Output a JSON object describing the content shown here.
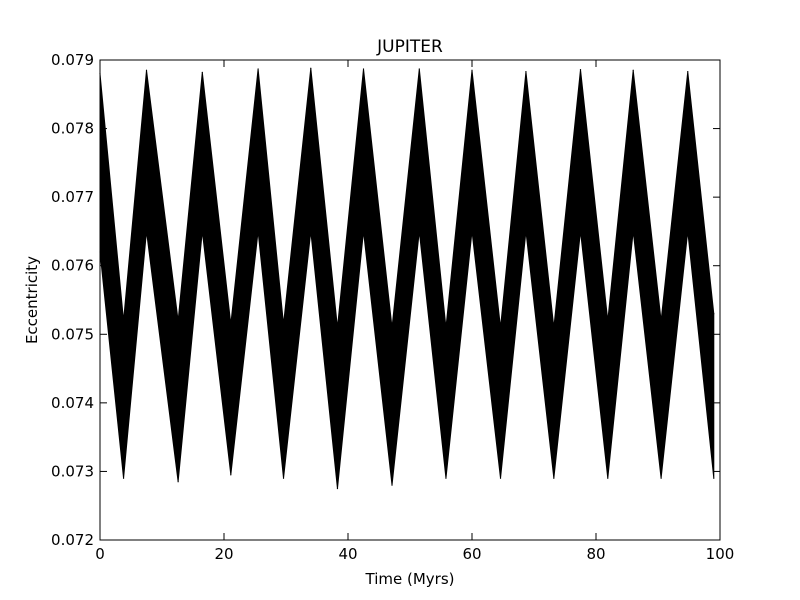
{
  "chart_data": {
    "type": "area",
    "title": "JUPITER",
    "xlabel": "Time (Myrs)",
    "ylabel": "Eccentricity",
    "xlim": [
      0,
      100
    ],
    "ylim": [
      0.072,
      0.079
    ],
    "xticks": [
      0,
      20,
      40,
      60,
      80,
      100
    ],
    "xtick_labels": [
      "0",
      "20",
      "40",
      "60",
      "80",
      "100"
    ],
    "yticks": [
      0.072,
      0.073,
      0.074,
      0.075,
      0.076,
      0.077,
      0.078,
      0.079
    ],
    "ytick_labels": [
      "0.072",
      "0.073",
      "0.074",
      "0.075",
      "0.076",
      "0.077",
      "0.078",
      "0.079"
    ],
    "grid": false,
    "fill_color": "#000000",
    "series": [
      {
        "x": [
          0,
          3.8,
          7.5,
          12.6,
          16.5,
          21.1,
          25.5,
          29.6,
          34.0,
          38.3,
          42.5,
          47.1,
          51.5,
          55.8,
          60.0,
          64.6,
          68.7,
          73.2,
          77.5,
          81.9,
          86.0,
          90.5,
          94.8,
          99.0
        ],
        "upper": [
          0.0788,
          0.0752,
          0.07885,
          0.0752,
          0.07882,
          0.07515,
          0.07887,
          0.07515,
          0.07888,
          0.0751,
          0.07887,
          0.0751,
          0.07887,
          0.0751,
          0.07885,
          0.0751,
          0.07883,
          0.0751,
          0.07886,
          0.0752,
          0.07885,
          0.0752,
          0.07883,
          0.0753
        ],
        "lower": [
          0.0762,
          0.0729,
          0.0765,
          0.07285,
          0.0765,
          0.07295,
          0.0765,
          0.0729,
          0.0765,
          0.07275,
          0.0765,
          0.0728,
          0.0765,
          0.0729,
          0.0765,
          0.0729,
          0.0765,
          0.0729,
          0.0765,
          0.0729,
          0.0765,
          0.0729,
          0.0765,
          0.0729
        ]
      }
    ]
  }
}
